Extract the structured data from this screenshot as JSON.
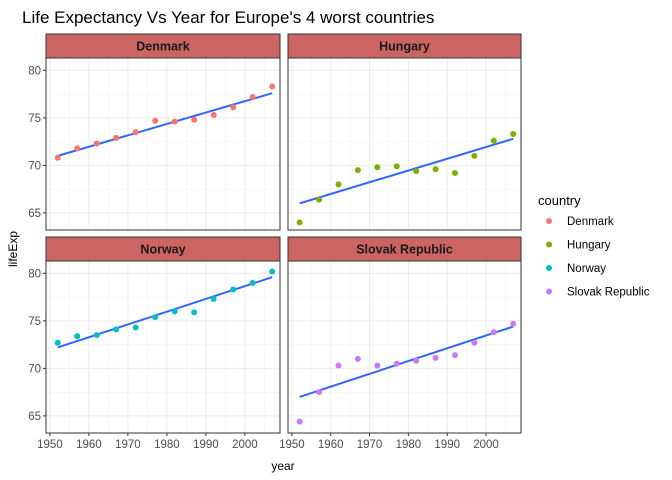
{
  "chart_data": {
    "type": "scatter",
    "title": "Life Expectancy Vs Year for Europe's 4 worst countries",
    "xlabel": "year",
    "ylabel": "lifeExp",
    "xlim": [
      1949,
      2009
    ],
    "ylim": [
      63.2,
      81.3
    ],
    "x_ticks": [
      1950,
      1960,
      1970,
      1980,
      1990,
      2000
    ],
    "y_ticks": [
      65,
      70,
      75,
      80
    ],
    "x_tick_labels": [
      "1950",
      "1960",
      "1970",
      "1980",
      "1990",
      "2000"
    ],
    "y_tick_labels": [
      "65",
      "70",
      "75",
      "80"
    ],
    "grid": true,
    "facet_strip_color": "#cd6464",
    "fit_line_color": "#3366ff",
    "legend": {
      "title": "country",
      "position": "right",
      "entries": [
        "Denmark",
        "Hungary",
        "Norway",
        "Slovak Republic"
      ]
    },
    "x": [
      1952,
      1957,
      1962,
      1967,
      1972,
      1977,
      1982,
      1987,
      1992,
      1997,
      2002,
      2007
    ],
    "panels": [
      {
        "name": "Denmark",
        "color": "#f8766d",
        "values": [
          70.8,
          71.8,
          72.3,
          72.9,
          73.5,
          74.7,
          74.6,
          74.8,
          75.3,
          76.1,
          77.2,
          78.3
        ],
        "fit": [
          [
            1952,
            71.0
          ],
          [
            2007,
            77.6
          ]
        ]
      },
      {
        "name": "Hungary",
        "color": "#7cae00",
        "values": [
          64.0,
          66.4,
          68.0,
          69.5,
          69.8,
          69.9,
          69.4,
          69.6,
          69.2,
          71.0,
          72.6,
          73.3
        ],
        "fit": [
          [
            1952,
            66.0
          ],
          [
            2007,
            72.8
          ]
        ]
      },
      {
        "name": "Norway",
        "color": "#00bfc4",
        "values": [
          72.7,
          73.4,
          73.5,
          74.1,
          74.3,
          75.4,
          76.0,
          75.9,
          77.3,
          78.3,
          79.0,
          80.2
        ],
        "fit": [
          [
            1952,
            72.2
          ],
          [
            2007,
            79.6
          ]
        ]
      },
      {
        "name": "Slovak Republic",
        "color": "#c77cff",
        "values": [
          64.4,
          67.5,
          70.3,
          71.0,
          70.3,
          70.5,
          70.8,
          71.1,
          71.4,
          72.7,
          73.8,
          74.7
        ],
        "fit": [
          [
            1952,
            67.0
          ],
          [
            2007,
            74.4
          ]
        ]
      }
    ]
  }
}
